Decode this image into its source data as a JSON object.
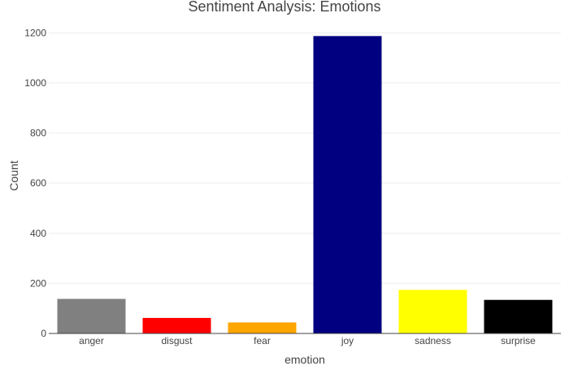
{
  "chart_data": {
    "type": "bar",
    "title": "Sentiment Analysis: Emotions",
    "xlabel": "emotion",
    "ylabel": "Count",
    "categories": [
      "anger",
      "disgust",
      "fear",
      "joy",
      "sadness",
      "surprise"
    ],
    "values": [
      138,
      62,
      44,
      1187,
      174,
      134
    ],
    "colors": [
      "#808080",
      "#ff0000",
      "#ffa500",
      "#000080",
      "#ffff00",
      "#000000"
    ],
    "ylim": [
      0,
      1240
    ],
    "yticks": [
      0,
      200,
      400,
      600,
      800,
      1000,
      1200
    ],
    "grid": true
  }
}
